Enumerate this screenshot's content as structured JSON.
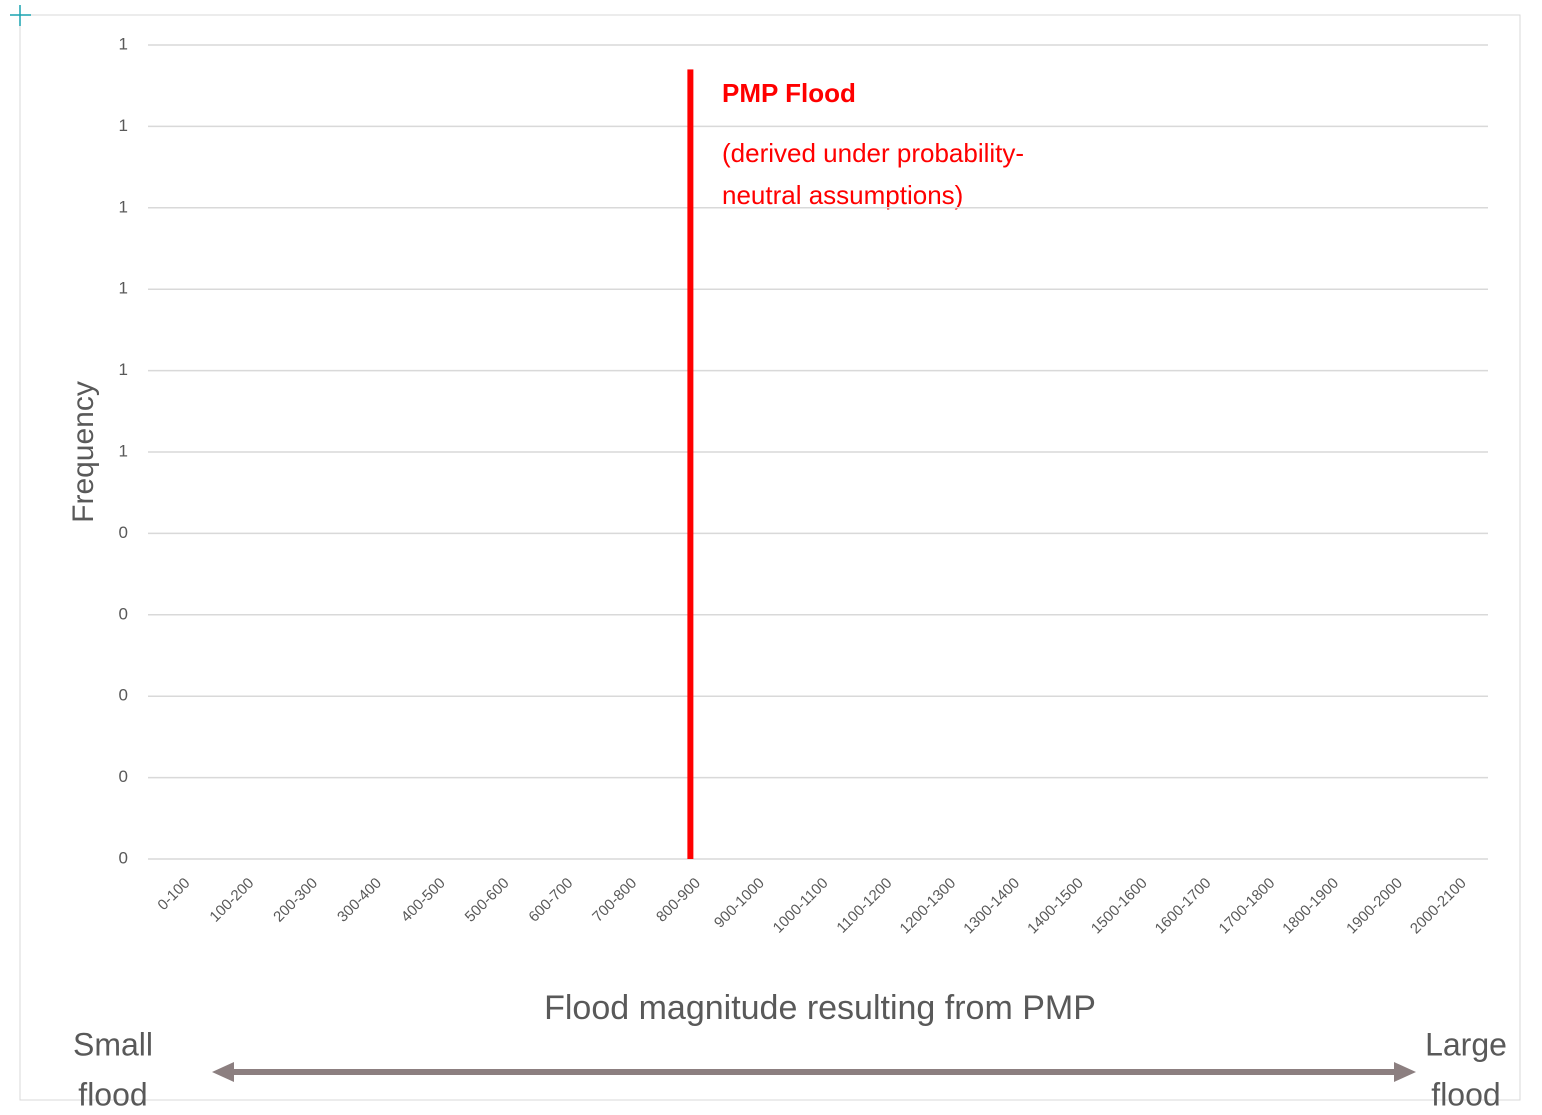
{
  "chart_data": {
    "type": "bar",
    "xlabel": "Flood magnitude resulting from PMP",
    "ylabel": "Frequency",
    "categories": [
      "0-100",
      "100-200",
      "200-300",
      "300-400",
      "400-500",
      "500-600",
      "600-700",
      "700-800",
      "800-900",
      "900-1000",
      "1000-1100",
      "1100-1200",
      "1200-1300",
      "1300-1400",
      "1400-1500",
      "1500-1600",
      "1600-1700",
      "1700-1800",
      "1800-1900",
      "1900-2000",
      "2000-2100"
    ],
    "values": [
      0,
      0,
      0,
      0,
      0,
      0,
      0,
      0,
      0.97,
      0,
      0,
      0,
      0,
      0,
      0,
      0,
      0,
      0,
      0,
      0,
      0
    ],
    "color": "#ff0000",
    "ylim": [
      0,
      1
    ],
    "yticks": [
      0,
      {
        "value": 0.1,
        "label": "0"
      },
      {
        "value": 0.2,
        "label": "0"
      },
      {
        "value": 0.3,
        "label": "0"
      },
      {
        "value": 0.4,
        "label": "0"
      },
      {
        "value": 0.5,
        "label": "1"
      },
      {
        "value": 0.6,
        "label": "1"
      },
      {
        "value": 0.7,
        "label": "1"
      },
      {
        "value": 0.8,
        "label": "1"
      },
      {
        "value": 0.9,
        "label": "1"
      },
      1
    ],
    "grid": true,
    "annotation": {
      "title": "PMP Flood",
      "lines": [
        "(derived under probability-",
        "neutral assumptions)"
      ]
    },
    "arrow_labels": {
      "left": [
        "Small",
        "flood"
      ],
      "right": [
        "Large",
        "flood"
      ]
    }
  }
}
